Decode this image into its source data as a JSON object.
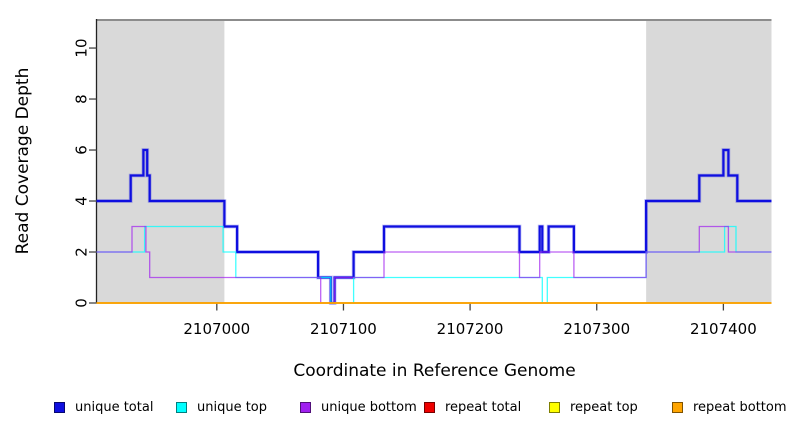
{
  "chart_data": {
    "type": "line",
    "subtype": "step-coverage",
    "title": "",
    "xlabel": "Coordinate in Reference Genome",
    "ylabel": "Read Coverage Depth",
    "xlim": [
      2106905,
      2107438
    ],
    "ylim": [
      0,
      11.1
    ],
    "x_ticks": [
      2107000,
      2107100,
      2107200,
      2107300,
      2107400
    ],
    "y_ticks": [
      0,
      2,
      4,
      6,
      8,
      10
    ],
    "grid": false,
    "legend_position": "bottom",
    "shaded_region_color": "#d9d9d9",
    "top_border_color": "#8c8c8c",
    "axis_color": "#222222",
    "shaded_regions": [
      {
        "x0": 2106905,
        "x1": 2107006
      },
      {
        "x0": 2107339,
        "x1": 2107438
      }
    ],
    "x_end": 2107438,
    "series": [
      {
        "name": "unique total",
        "color": "#0f0fe0",
        "width": 2.2,
        "opacity": 1,
        "glow": true,
        "steps": [
          [
            2106905,
            4
          ],
          [
            2106932,
            5
          ],
          [
            2106942,
            6
          ],
          [
            2106945,
            5
          ],
          [
            2106947,
            4
          ],
          [
            2107006,
            3
          ],
          [
            2107016,
            2
          ],
          [
            2107080,
            1
          ],
          [
            2107090,
            0
          ],
          [
            2107093,
            1
          ],
          [
            2107108,
            2
          ],
          [
            2107132,
            3
          ],
          [
            2107239,
            2
          ],
          [
            2107255,
            3
          ],
          [
            2107257,
            2
          ],
          [
            2107262,
            3
          ],
          [
            2107282,
            2
          ],
          [
            2107339,
            4
          ],
          [
            2107381,
            5
          ],
          [
            2107400,
            6
          ],
          [
            2107404,
            5
          ],
          [
            2107411,
            4
          ]
        ]
      },
      {
        "name": "unique top",
        "color": "#00ffff",
        "width": 1.3,
        "opacity": 0.75,
        "glow": false,
        "steps": [
          [
            2106905,
            2
          ],
          [
            2106943,
            3
          ],
          [
            2107005,
            2
          ],
          [
            2107015,
            1
          ],
          [
            2107090,
            0
          ],
          [
            2107108,
            1
          ],
          [
            2107257,
            0
          ],
          [
            2107261,
            1
          ],
          [
            2107339,
            2
          ],
          [
            2107401,
            3
          ],
          [
            2107410,
            2
          ]
        ]
      },
      {
        "name": "unique bottom",
        "color": "#a020f0",
        "width": 1.3,
        "opacity": 0.7,
        "glow": false,
        "steps": [
          [
            2106905,
            2
          ],
          [
            2106933,
            3
          ],
          [
            2106944,
            2
          ],
          [
            2106947,
            1
          ],
          [
            2107082,
            0
          ],
          [
            2107093,
            1
          ],
          [
            2107132,
            2
          ],
          [
            2107239,
            1
          ],
          [
            2107255,
            2
          ],
          [
            2107282,
            1
          ],
          [
            2107339,
            2
          ],
          [
            2107381,
            3
          ],
          [
            2107404,
            2
          ]
        ]
      },
      {
        "name": "repeat total",
        "color": "#ee0000",
        "width": 1.3,
        "opacity": 1,
        "glow": false,
        "steps": [
          [
            2106905,
            0
          ]
        ]
      },
      {
        "name": "repeat top",
        "color": "#ffff00",
        "width": 1.3,
        "opacity": 1,
        "glow": false,
        "steps": [
          [
            2106905,
            0
          ]
        ]
      },
      {
        "name": "repeat bottom",
        "color": "#ffa500",
        "width": 1.7,
        "opacity": 1,
        "glow": false,
        "steps": [
          [
            2106905,
            0
          ]
        ]
      }
    ]
  }
}
